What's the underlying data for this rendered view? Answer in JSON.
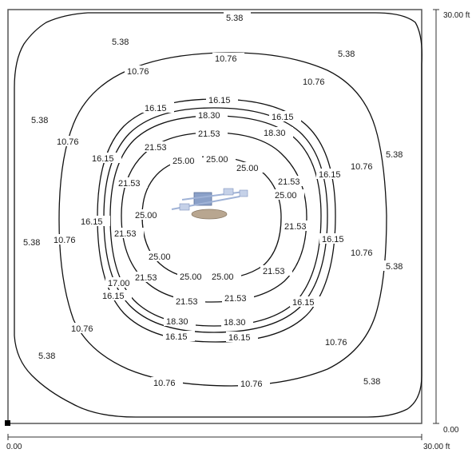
{
  "axes": {
    "x_min_label": "0.00",
    "x_max_label": "30.00 ft",
    "y_min_label": "0.00",
    "y_max_label": "30.00 ft"
  },
  "contours": [
    {
      "level": "5.38"
    },
    {
      "level": "10.76"
    },
    {
      "level": "16.15"
    },
    {
      "level": "17.00"
    },
    {
      "level": "18.30"
    },
    {
      "level": "21.53"
    },
    {
      "level": "25.00"
    }
  ],
  "colors": {
    "line": "#111111",
    "fixture_body": "#8aa0c8",
    "fixture_base": "#b8a690"
  },
  "icons": {
    "fixture": "ceiling-light-fixture-icon",
    "origin": "origin-marker-icon"
  }
}
